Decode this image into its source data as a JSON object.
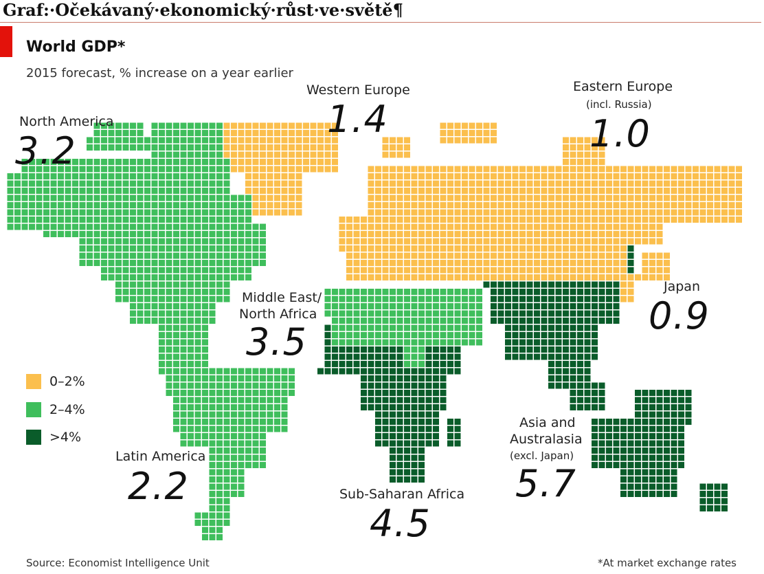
{
  "document_heading": "Graf:·Očekávaný·ekonomický·růst·ve·světě¶",
  "title": "World GDP*",
  "subtitle": "2015 forecast, % increase on a year earlier",
  "colors": {
    "low": "#fbbf4d",
    "mid": "#3fbe5c",
    "high": "#0a5c2a",
    "accent_tab": "#e3120b"
  },
  "legend": [
    {
      "label": "0–2%",
      "color_key": "low"
    },
    {
      "label": "2–4%",
      "color_key": "mid"
    },
    {
      "label": ">4%",
      "color_key": "high"
    }
  ],
  "regions": {
    "north_america": {
      "name": "North America",
      "value": "3.2",
      "category": "mid"
    },
    "latin_america": {
      "name": "Latin America",
      "value": "2.2",
      "category": "mid"
    },
    "western_europe": {
      "name": "Western Europe",
      "value": "1.4",
      "category": "low"
    },
    "eastern_europe": {
      "name": "Eastern Europe",
      "note": "(incl. Russia)",
      "value": "1.0",
      "category": "low"
    },
    "middle_east": {
      "name_line1": "Middle East/",
      "name_line2": "North Africa",
      "value": "3.5",
      "category": "mid"
    },
    "sub_saharan_africa": {
      "name": "Sub-Saharan Africa",
      "value": "4.5",
      "category": "high"
    },
    "japan": {
      "name": "Japan",
      "value": "0.9",
      "category": "low"
    },
    "asia_australasia": {
      "name_line1": "Asia and",
      "name_line2": "Australasia",
      "note": "(excl. Japan)",
      "value": "5.7",
      "category": "high"
    }
  },
  "source": "Source: Economist Intelligence Unit",
  "footnote": "*At market exchange rates"
}
